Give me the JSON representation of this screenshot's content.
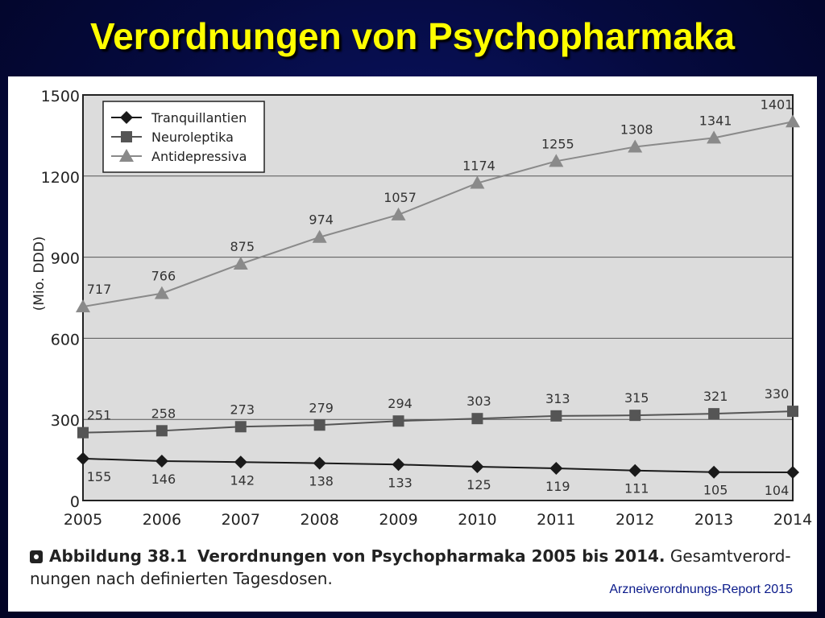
{
  "slide": {
    "title": "Verordnungen von Psychopharmaka",
    "caption_label": "Abbildung 38.1",
    "caption_bold": "Verordnungen von Psychopharmaka 2005 bis 2014.",
    "caption_rest": "Gesamtverord­nungen nach definierten Tagesdosen.",
    "source": "Arzneiverordnungs-Report 2015"
  },
  "colors": {
    "plot_bg": "#dcdcdc",
    "tranquillantien": "#1a1a1a",
    "neuroleptika": "#555555",
    "antidepressiva": "#8a8a8a"
  },
  "chart_data": {
    "type": "line",
    "title": "",
    "xlabel": "",
    "ylabel": "(Mio. DDD)",
    "x": [
      "2005",
      "2006",
      "2007",
      "2008",
      "2009",
      "2010",
      "2011",
      "2012",
      "2013",
      "2014"
    ],
    "ylim": [
      0,
      1500
    ],
    "yticks": [
      "0",
      "300",
      "600",
      "900",
      "1200",
      "1500"
    ],
    "grid": true,
    "legend_position": "top-left",
    "series": [
      {
        "name": "Tranquillantien",
        "marker": "diamond",
        "values": [
          155,
          146,
          142,
          138,
          133,
          125,
          119,
          111,
          105,
          104
        ]
      },
      {
        "name": "Neuroleptika",
        "marker": "square",
        "values": [
          251,
          258,
          273,
          279,
          294,
          303,
          313,
          315,
          321,
          330
        ]
      },
      {
        "name": "Antidepressiva",
        "marker": "triangle",
        "values": [
          717,
          766,
          875,
          974,
          1057,
          1174,
          1255,
          1308,
          1341,
          1401
        ]
      }
    ]
  }
}
